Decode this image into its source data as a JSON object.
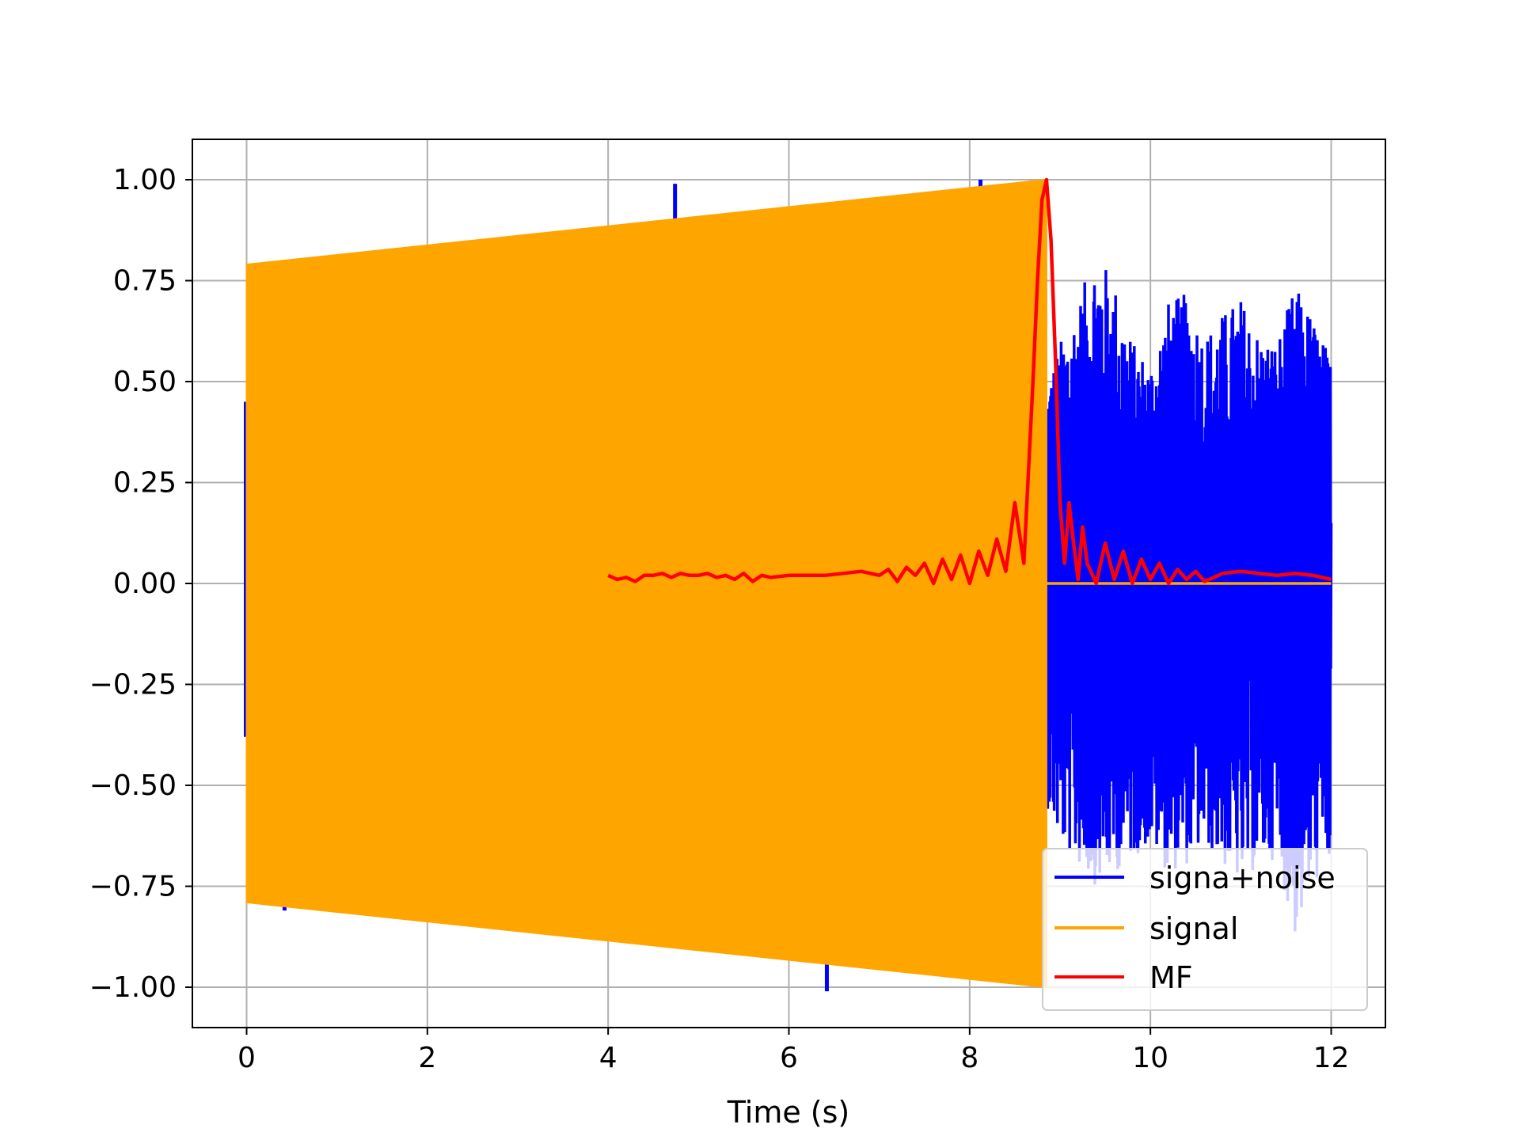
{
  "chart_data": {
    "type": "line",
    "title": "",
    "xlabel": "Time (s)",
    "ylabel": "",
    "xlim": [
      -0.6,
      12.6
    ],
    "ylim": [
      -1.1,
      1.1
    ],
    "xticks": [
      0,
      2,
      4,
      6,
      8,
      10,
      12
    ],
    "xtick_labels": [
      "0",
      "2",
      "4",
      "6",
      "8",
      "10",
      "12"
    ],
    "yticks": [
      1.0,
      0.75,
      0.5,
      0.25,
      0.0,
      -0.25,
      -0.5,
      -0.75,
      -1.0
    ],
    "ytick_labels": [
      "1.00",
      "0.75",
      "0.50",
      "0.25",
      "0.00",
      "−0.25",
      "−0.50",
      "−0.75",
      "−1.00"
    ],
    "grid": true,
    "legend_position": "bottom-right",
    "series": [
      {
        "name": "signa+noise",
        "color": "#0000ff",
        "kind": "signal plus noise",
        "signal_end": 8.85,
        "noise_x": [
          8.85,
          9.0,
          9.2,
          9.4,
          9.6,
          9.8,
          10.0,
          10.2,
          10.4,
          10.6,
          10.8,
          11.0,
          11.2,
          11.4,
          11.6,
          11.8,
          12.0
        ],
        "noise_upper": [
          0.5,
          0.6,
          0.7,
          0.83,
          0.75,
          0.6,
          0.55,
          0.7,
          0.72,
          0.62,
          0.67,
          0.71,
          0.62,
          0.6,
          0.74,
          0.66,
          0.56
        ],
        "noise_lower": [
          -0.55,
          -0.65,
          -0.7,
          -0.75,
          -0.72,
          -0.68,
          -0.65,
          -0.72,
          -0.7,
          -0.65,
          -0.7,
          -0.75,
          -0.7,
          -0.68,
          -0.88,
          -0.75,
          -0.7
        ],
        "spikes": [
          {
            "x": 1.84,
            "y": 0.83
          },
          {
            "x": 4.74,
            "y": 0.99
          },
          {
            "x": 8.12,
            "y": 1.0
          },
          {
            "x": 0.42,
            "y": -0.81
          },
          {
            "x": 6.42,
            "y": -1.01
          }
        ]
      },
      {
        "name": "signal",
        "color": "#ffa500",
        "kind": "chirp envelope",
        "x": [
          0.0,
          8.85
        ],
        "upper": [
          0.79,
          1.0
        ],
        "lower": [
          -0.79,
          -1.0
        ],
        "after_value": 0.0,
        "after_x": [
          8.85,
          12.0
        ]
      },
      {
        "name": "MF",
        "color": "#ff0000",
        "kind": "matched filter output",
        "x": [
          4.0,
          4.1,
          4.2,
          4.3,
          4.4,
          4.5,
          4.6,
          4.7,
          4.8,
          4.9,
          5.0,
          5.1,
          5.2,
          5.3,
          5.4,
          5.5,
          5.6,
          5.7,
          5.8,
          6.0,
          6.2,
          6.4,
          6.6,
          6.8,
          7.0,
          7.1,
          7.2,
          7.3,
          7.4,
          7.5,
          7.6,
          7.7,
          7.8,
          7.9,
          8.0,
          8.1,
          8.2,
          8.3,
          8.4,
          8.5,
          8.6,
          8.7,
          8.75,
          8.8,
          8.85,
          8.9,
          8.95,
          9.0,
          9.05,
          9.1,
          9.15,
          9.2,
          9.25,
          9.3,
          9.4,
          9.5,
          9.6,
          9.7,
          9.8,
          9.9,
          10.0,
          10.1,
          10.2,
          10.3,
          10.4,
          10.5,
          10.6,
          10.8,
          11.0,
          11.2,
          11.4,
          11.6,
          11.8,
          12.0
        ],
        "y": [
          0.02,
          0.01,
          0.015,
          0.005,
          0.02,
          0.02,
          0.025,
          0.015,
          0.025,
          0.02,
          0.02,
          0.025,
          0.015,
          0.02,
          0.01,
          0.025,
          0.005,
          0.02,
          0.015,
          0.02,
          0.02,
          0.02,
          0.025,
          0.03,
          0.02,
          0.035,
          0.005,
          0.04,
          0.02,
          0.05,
          0.0,
          0.06,
          0.01,
          0.07,
          0.0,
          0.08,
          0.02,
          0.11,
          0.03,
          0.2,
          0.05,
          0.5,
          0.75,
          0.95,
          1.0,
          0.85,
          0.55,
          0.2,
          0.05,
          0.2,
          0.1,
          0.01,
          0.14,
          0.05,
          0.0,
          0.1,
          0.01,
          0.08,
          0.0,
          0.06,
          0.01,
          0.05,
          0.0,
          0.035,
          0.01,
          0.03,
          0.005,
          0.025,
          0.03,
          0.025,
          0.02,
          0.025,
          0.02,
          0.01
        ]
      }
    ]
  }
}
